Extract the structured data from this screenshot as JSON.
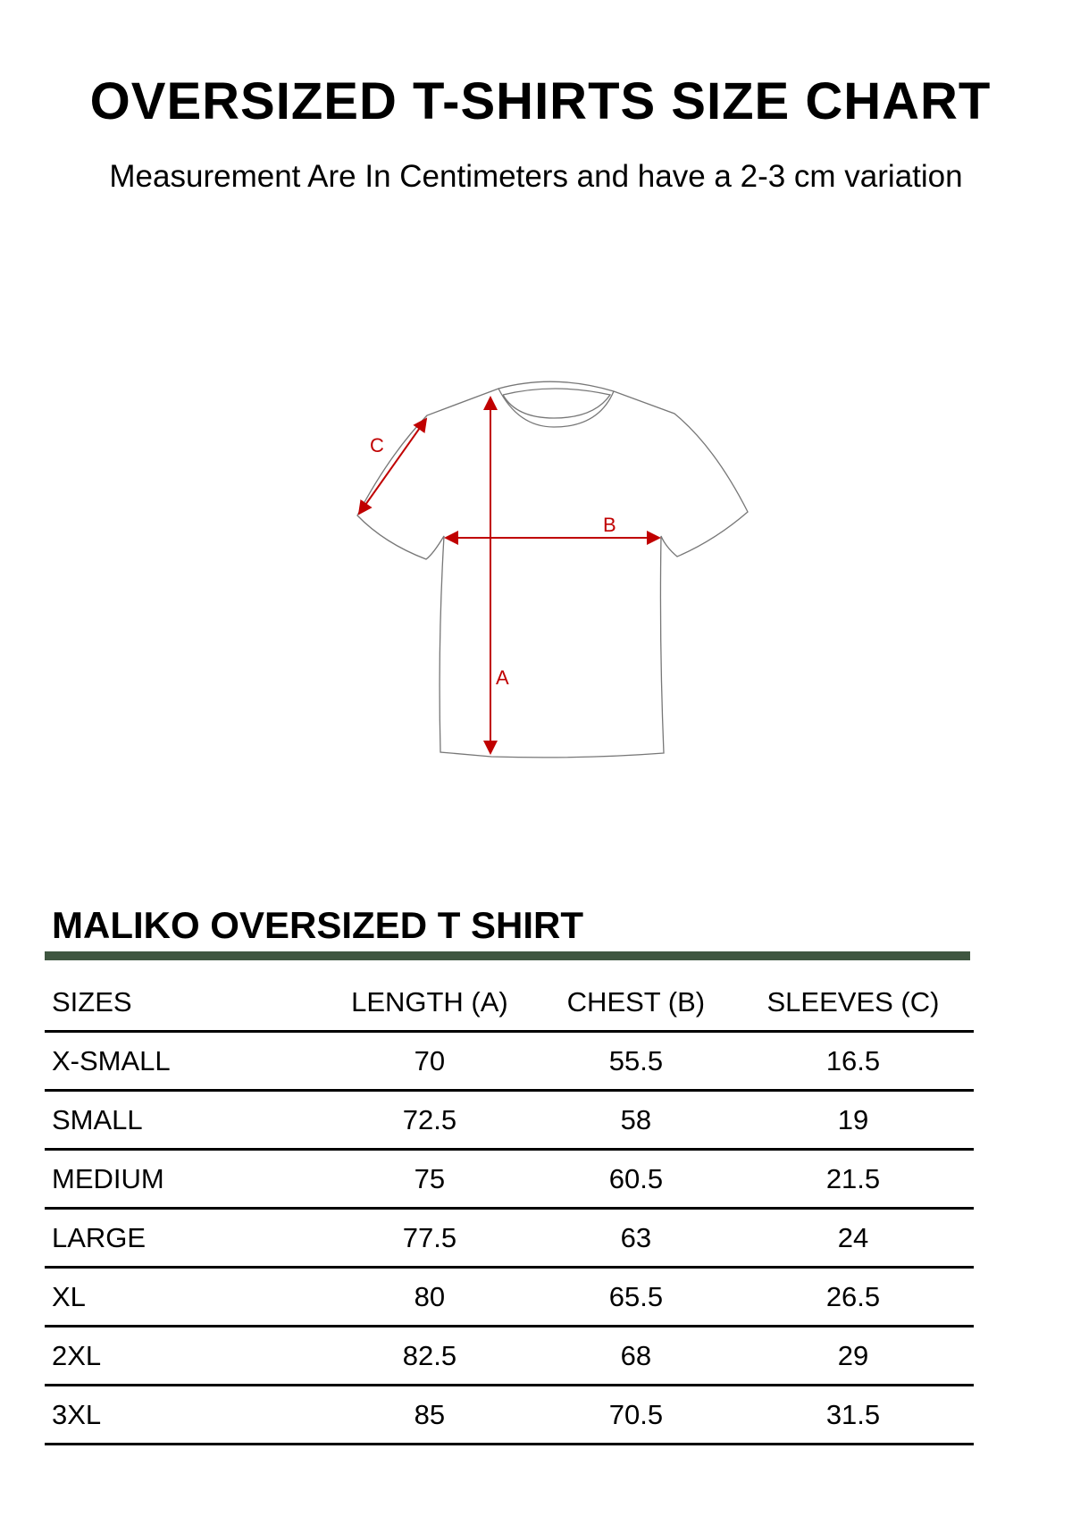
{
  "title": "OVERSIZED T-SHIRTS SIZE CHART",
  "subtitle": "Measurement Are In Centimeters and have a 2-3 cm variation",
  "diagram": {
    "labels": {
      "a": "A",
      "b": "B",
      "c": "C"
    },
    "arrow_color": "#c00000",
    "accent_bar_color": "#3f5640"
  },
  "product_title": "MALIKO OVERSIZED T SHIRT",
  "table": {
    "headers": [
      "SIZES",
      "LENGTH (A)",
      "CHEST (B)",
      "SLEEVES (C)"
    ],
    "rows": [
      [
        "X-SMALL",
        "70",
        "55.5",
        "16.5"
      ],
      [
        "SMALL",
        "72.5",
        "58",
        "19"
      ],
      [
        "MEDIUM",
        "75",
        "60.5",
        "21.5"
      ],
      [
        "LARGE",
        "77.5",
        "63",
        "24"
      ],
      [
        "XL",
        "80",
        "65.5",
        "26.5"
      ],
      [
        "2XL",
        "82.5",
        "68",
        "29"
      ],
      [
        "3XL",
        "85",
        "70.5",
        "31.5"
      ]
    ]
  }
}
